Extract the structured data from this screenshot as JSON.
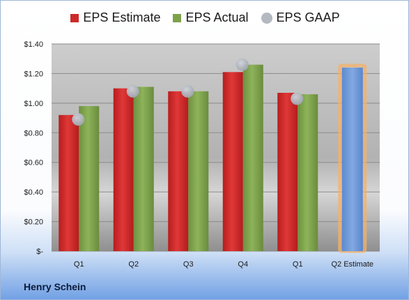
{
  "company": "Henry Schein",
  "legend": [
    {
      "label": "EPS Estimate",
      "color": "#cc2a2a",
      "icon": "square-swatch"
    },
    {
      "label": "EPS Actual",
      "color": "#7ea24a",
      "icon": "square-swatch"
    },
    {
      "label": "EPS GAAP",
      "color": "#b4b8c1",
      "icon": "circle-swatch"
    }
  ],
  "chart_data": {
    "type": "bar",
    "categories": [
      "Q1",
      "Q2",
      "Q3",
      "Q4",
      "Q1",
      "Q2 Estimate"
    ],
    "series": [
      {
        "name": "EPS Estimate",
        "color": "#cc2a2a",
        "values": [
          0.92,
          1.1,
          1.08,
          1.21,
          1.07,
          null
        ]
      },
      {
        "name": "EPS Actual",
        "color": "#7ea24a",
        "values": [
          0.98,
          1.11,
          1.08,
          1.26,
          1.06,
          null
        ]
      },
      {
        "name": "EPS GAAP",
        "color": "#b4b8c1",
        "style": "marker",
        "values": [
          0.89,
          1.08,
          1.08,
          1.26,
          1.03,
          null
        ]
      }
    ],
    "forecast": {
      "category": "Q2 Estimate",
      "value": 1.24,
      "color": "#6f9ad8",
      "highlight": "#f4b26a"
    },
    "ylim": [
      0,
      1.4
    ],
    "yticks": [
      0,
      0.2,
      0.4,
      0.6,
      0.8,
      1.0,
      1.2,
      1.4
    ],
    "ytick_labels": [
      "$-",
      "$0.20",
      "$0.40",
      "$0.60",
      "$0.80",
      "$1.00",
      "$1.20",
      "$1.40"
    ],
    "grid": true,
    "legend_position": "top",
    "title": "",
    "xlabel": "",
    "ylabel": ""
  }
}
